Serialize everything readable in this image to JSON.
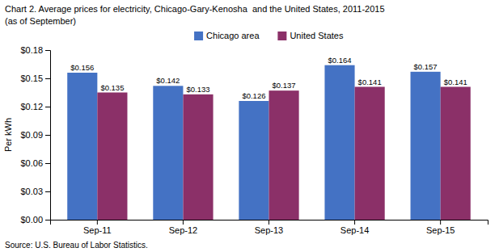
{
  "chart_data": {
    "type": "bar",
    "title": "Chart 2. Average prices for electricity, Chicago-Gary-Kenosha  and the United States, 2011-2015",
    "subtitle": "(as of September)",
    "ylabel": "Per kWh",
    "source": "Source: U.S. Bureau of Labor Statistics.",
    "categories": [
      "Sep-11",
      "Sep-12",
      "Sep-13",
      "Sep-14",
      "Sep-15"
    ],
    "series": [
      {
        "name": "Chicago area",
        "color": "#4472C4",
        "values": [
          0.156,
          0.142,
          0.126,
          0.164,
          0.157
        ],
        "value_labels": [
          "$0.156",
          "$0.142",
          "$0.126",
          "$0.164",
          "$0.157"
        ]
      },
      {
        "name": "United States",
        "color": "#8B3068",
        "values": [
          0.135,
          0.133,
          0.137,
          0.141,
          0.141
        ],
        "value_labels": [
          "$0.135",
          "$0.133",
          "$0.137",
          "$0.141",
          "$0.141"
        ]
      }
    ],
    "ylim": [
      0,
      0.18
    ],
    "yticks": [
      {
        "value": 0.0,
        "label": "$0.00"
      },
      {
        "value": 0.03,
        "label": "$0.03"
      },
      {
        "value": 0.06,
        "label": "$0.06"
      },
      {
        "value": 0.09,
        "label": "$0.09"
      },
      {
        "value": 0.12,
        "label": "$0.12"
      },
      {
        "value": 0.15,
        "label": "$0.15"
      },
      {
        "value": 0.18,
        "label": "$0.18"
      }
    ],
    "grid": false,
    "legend": "top",
    "data_labels": true
  }
}
